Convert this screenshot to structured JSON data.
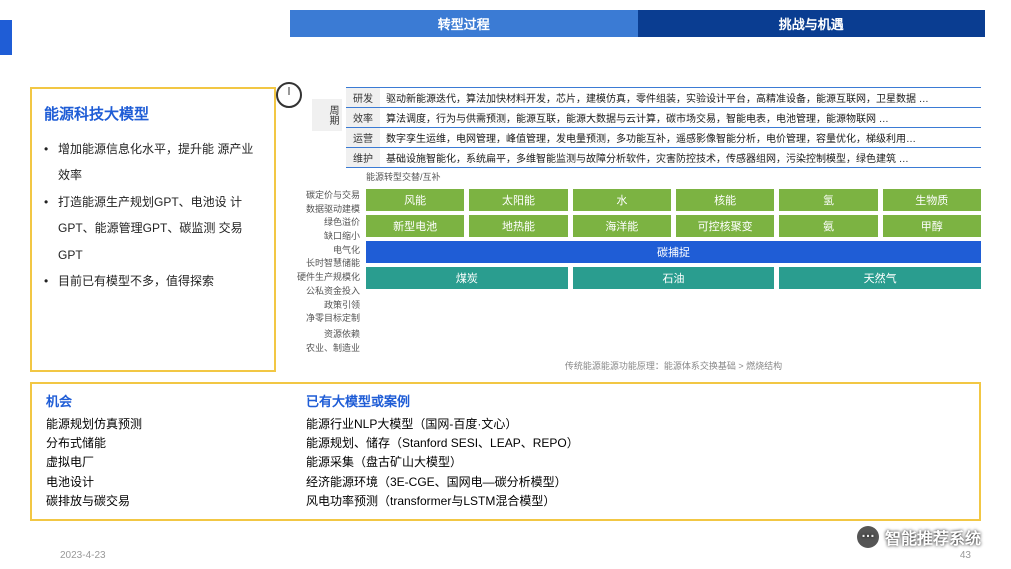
{
  "colors": {
    "accent_blue": "#1f5dd6",
    "header_blue1": "#3b7bd4",
    "header_blue2": "#0a3d91",
    "border_yellow": "#f2c744",
    "green": "#7cb342",
    "teal": "#2a9d8f"
  },
  "header": {
    "col1": "转型过程",
    "col2": "挑战与机遇"
  },
  "left_panel": {
    "title": "能源科技大模型",
    "bullets": [
      "增加能源信息化水平，提升能 源产业效率",
      "打造能源生产规划GPT、电池设 计GPT、能源管理GPT、碳监测 交易GPT",
      "目前已有模型不多，值得探索"
    ]
  },
  "vertical_label": "周期",
  "stages": [
    {
      "label": "研发",
      "text": "驱动新能源迭代，算法加快材料开发，芯片，建模仿真，零件组装，实验设计平台，高精准设备，能源互联网，卫星数据 …"
    },
    {
      "label": "效率",
      "text": "算法调度，行为与供需预测，能源互联，能源大数据与云计算，碳市场交易，智能电表，电池管理，能源物联网 …"
    },
    {
      "label": "运营",
      "text": "数字孪生运维，电网管理，峰值管理，发电量预测，多功能互补，遥感影像智能分析，电价管理，容量优化，梯级利用…"
    },
    {
      "label": "维护",
      "text": "基础设施智能化，系统扁平，多维智能监测与故障分析软件，灾害防控技术，传感器组网，污染控制模型，绿色建筑 …"
    }
  ],
  "subtitle_mid": "能源转型交替/互补",
  "mid_label_lines": [
    "碳定价与交易",
    "数据驱动建模",
    "绿色溢价",
    "缺口缩小",
    "电气化",
    "长时智慧储能",
    "硬件生产规模化",
    "公私资金投入",
    "政策引领",
    "净零目标定制"
  ],
  "energy_rows": [
    {
      "class": "green",
      "cells": [
        "风能",
        "太阳能",
        "水",
        "核能",
        "氢",
        "生物质"
      ]
    },
    {
      "class": "green",
      "cells": [
        "新型电池",
        "地热能",
        "海洋能",
        "可控核聚变",
        "氨",
        "甲醇"
      ]
    }
  ],
  "capture_row": "碳捕捉",
  "fossil_row": [
    "煤炭",
    "石油",
    "天然气"
  ],
  "bottom_labels": {
    "left": "资源依赖",
    "left2": "农业、制造业"
  },
  "footnote": "传统能源能源功能原理：能源体系交换基础 > 燃烧结构",
  "bottom": {
    "col1_title": "机会",
    "col1_items": [
      "能源规划仿真预测",
      "分布式储能",
      "虚拟电厂",
      "电池设计",
      "碳排放与碳交易"
    ],
    "col2_title": "已有大模型或案例",
    "col2_items": [
      "能源行业NLP大模型（国网-百度·文心）",
      "能源规划、储存（Stanford SESI、LEAP、REPO）",
      "能源采集（盘古矿山大模型）",
      "经济能源环境（3E-CGE、国网电—碳分析模型）",
      "风电功率预测（transformer与LSTM混合模型）"
    ]
  },
  "footer": {
    "date": "2023-4-23",
    "page": "43"
  },
  "watermark": "智能推荐系统"
}
